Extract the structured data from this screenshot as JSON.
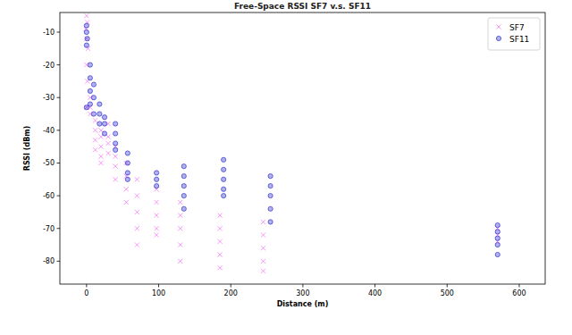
{
  "chart_data": {
    "type": "scatter",
    "title": "Free-Space RSSI SF7 v.s. SF11",
    "x_label": "Distance (m)",
    "y_label": "RSSI (dBm)",
    "xlim": [
      -37,
      636
    ],
    "ylim": [
      -87,
      -4
    ],
    "xticks": [
      0,
      100,
      200,
      300,
      400,
      500,
      600
    ],
    "yticks": [
      -80,
      -70,
      -60,
      -50,
      -40,
      -30,
      -20,
      -10
    ],
    "legend": "upper-right",
    "grid": false,
    "series": [
      {
        "name": "SF7",
        "color": "#ee33ee",
        "marker": "x",
        "x": [
          0,
          1,
          -1,
          0,
          2,
          0,
          1,
          0,
          5,
          5,
          5,
          12,
          12,
          12,
          12,
          20,
          20,
          20,
          20,
          20,
          30,
          30,
          30,
          30,
          40,
          40,
          40,
          40,
          55,
          55,
          55,
          55,
          70,
          70,
          70,
          70,
          70,
          97,
          97,
          97,
          97,
          97,
          130,
          130,
          130,
          130,
          130,
          185,
          185,
          185,
          185,
          185,
          245,
          245,
          245,
          245,
          245,
          570,
          570,
          570
        ],
        "values": [
          -5,
          -7,
          -9,
          -12,
          -15,
          -20,
          -25,
          -33,
          -30,
          -33,
          -35,
          -37,
          -40,
          -43,
          -46,
          -40,
          -42,
          -45,
          -48,
          -50,
          -38,
          -42,
          -44,
          -47,
          -45,
          -48,
          -51,
          -55,
          -50,
          -54,
          -58,
          -62,
          -55,
          -60,
          -65,
          -70,
          -75,
          -58,
          -62,
          -66,
          -70,
          -72,
          -62,
          -66,
          -70,
          -75,
          -80,
          -66,
          -70,
          -74,
          -78,
          -82,
          -68,
          -72,
          -76,
          -80,
          -83,
          -70,
          -72,
          -74
        ]
      },
      {
        "name": "SF11",
        "color": "#2222cc",
        "marker": "o",
        "x": [
          0,
          0,
          1,
          0,
          0,
          5,
          5,
          5,
          5,
          10,
          10,
          10,
          18,
          18,
          18,
          25,
          25,
          25,
          40,
          40,
          40,
          40,
          57,
          57,
          57,
          57,
          97,
          97,
          97,
          135,
          135,
          135,
          135,
          135,
          190,
          190,
          190,
          190,
          190,
          255,
          255,
          255,
          255,
          255,
          570,
          570,
          570,
          570,
          570
        ],
        "values": [
          -8,
          -10,
          -12,
          -14,
          -33,
          -20,
          -24,
          -28,
          -32,
          -26,
          -30,
          -35,
          -32,
          -35,
          -38,
          -36,
          -38,
          -41,
          -38,
          -41,
          -44,
          -46,
          -47,
          -50,
          -53,
          -55,
          -53,
          -55,
          -57,
          -51,
          -54,
          -57,
          -60,
          -64,
          -49,
          -52,
          -55,
          -58,
          -60,
          -54,
          -57,
          -60,
          -64,
          -68,
          -69,
          -71,
          -73,
          -75,
          -78
        ]
      }
    ]
  }
}
